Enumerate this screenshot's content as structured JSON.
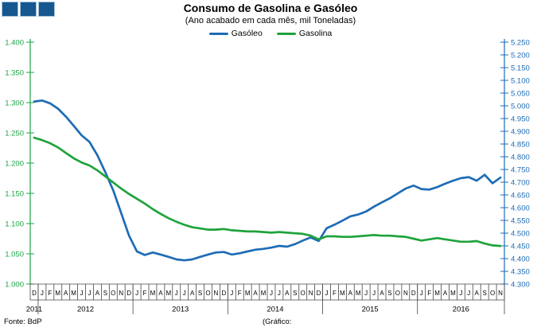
{
  "footer": {
    "source": "Fonte: BdP",
    "credit": "(Gráfico:"
  },
  "chart_data": {
    "type": "line",
    "title": "Consumo de Gasolina e Gasóleo",
    "subtitle": "(Ano acabado em cada mês, mil Toneladas)",
    "grid": false,
    "legend_position": "top-center",
    "x_months": [
      "D",
      "J",
      "F",
      "M",
      "A",
      "M",
      "J",
      "J",
      "A",
      "S",
      "O",
      "N",
      "D",
      "J",
      "F",
      "M",
      "A",
      "M",
      "J",
      "J",
      "A",
      "S",
      "O",
      "N",
      "D",
      "J",
      "F",
      "M",
      "A",
      "M",
      "J",
      "J",
      "A",
      "S",
      "O",
      "N",
      "D",
      "J",
      "F",
      "M",
      "A",
      "M",
      "J",
      "J",
      "A",
      "S",
      "O",
      "N",
      "D",
      "J",
      "F",
      "M",
      "A",
      "M",
      "J",
      "J",
      "A",
      "S",
      "O",
      "N"
    ],
    "x_years": [
      {
        "label": "2011",
        "start": 0,
        "end": 1
      },
      {
        "label": "2012",
        "start": 1,
        "end": 13
      },
      {
        "label": "2013",
        "start": 13,
        "end": 25
      },
      {
        "label": "2014",
        "start": 25,
        "end": 37
      },
      {
        "label": "2015",
        "start": 37,
        "end": 49
      },
      {
        "label": "2016",
        "start": 49,
        "end": 60
      }
    ],
    "left_axis": {
      "min": 1.0,
      "max": 1.4,
      "step": 0.05,
      "color": "#1EA546",
      "series": "Gasolina"
    },
    "right_axis": {
      "min": 4.3,
      "max": 5.25,
      "step": 0.05,
      "color": "#1E6CB5",
      "series": "Gasóleo"
    },
    "series": [
      {
        "name": "Gasóleo",
        "axis": "right",
        "color": "#1E6CB5",
        "values": [
          5.017,
          5.021,
          5.01,
          4.989,
          4.958,
          4.922,
          4.884,
          4.858,
          4.806,
          4.739,
          4.668,
          4.58,
          4.49,
          4.428,
          4.414,
          4.424,
          4.416,
          4.407,
          4.397,
          4.393,
          4.397,
          4.407,
          4.416,
          4.424,
          4.426,
          4.416,
          4.421,
          4.428,
          4.435,
          4.438,
          4.443,
          4.45,
          4.447,
          4.457,
          4.471,
          4.483,
          4.469,
          4.519,
          4.533,
          4.549,
          4.566,
          4.573,
          4.585,
          4.604,
          4.621,
          4.637,
          4.656,
          4.675,
          4.687,
          4.673,
          4.671,
          4.681,
          4.694,
          4.706,
          4.716,
          4.72,
          4.706,
          4.729,
          4.696,
          4.718
        ]
      },
      {
        "name": "Gasolina",
        "axis": "left",
        "color": "#1FA33C",
        "values": [
          1.242,
          1.238,
          1.233,
          1.226,
          1.217,
          1.208,
          1.201,
          1.196,
          1.188,
          1.178,
          1.168,
          1.158,
          1.149,
          1.141,
          1.133,
          1.124,
          1.116,
          1.109,
          1.103,
          1.098,
          1.094,
          1.092,
          1.09,
          1.09,
          1.091,
          1.089,
          1.088,
          1.087,
          1.087,
          1.086,
          1.085,
          1.086,
          1.085,
          1.084,
          1.083,
          1.08,
          1.074,
          1.079,
          1.079,
          1.078,
          1.078,
          1.079,
          1.08,
          1.081,
          1.08,
          1.08,
          1.079,
          1.078,
          1.075,
          1.072,
          1.074,
          1.076,
          1.074,
          1.072,
          1.07,
          1.07,
          1.071,
          1.067,
          1.064,
          1.063
        ]
      }
    ]
  }
}
